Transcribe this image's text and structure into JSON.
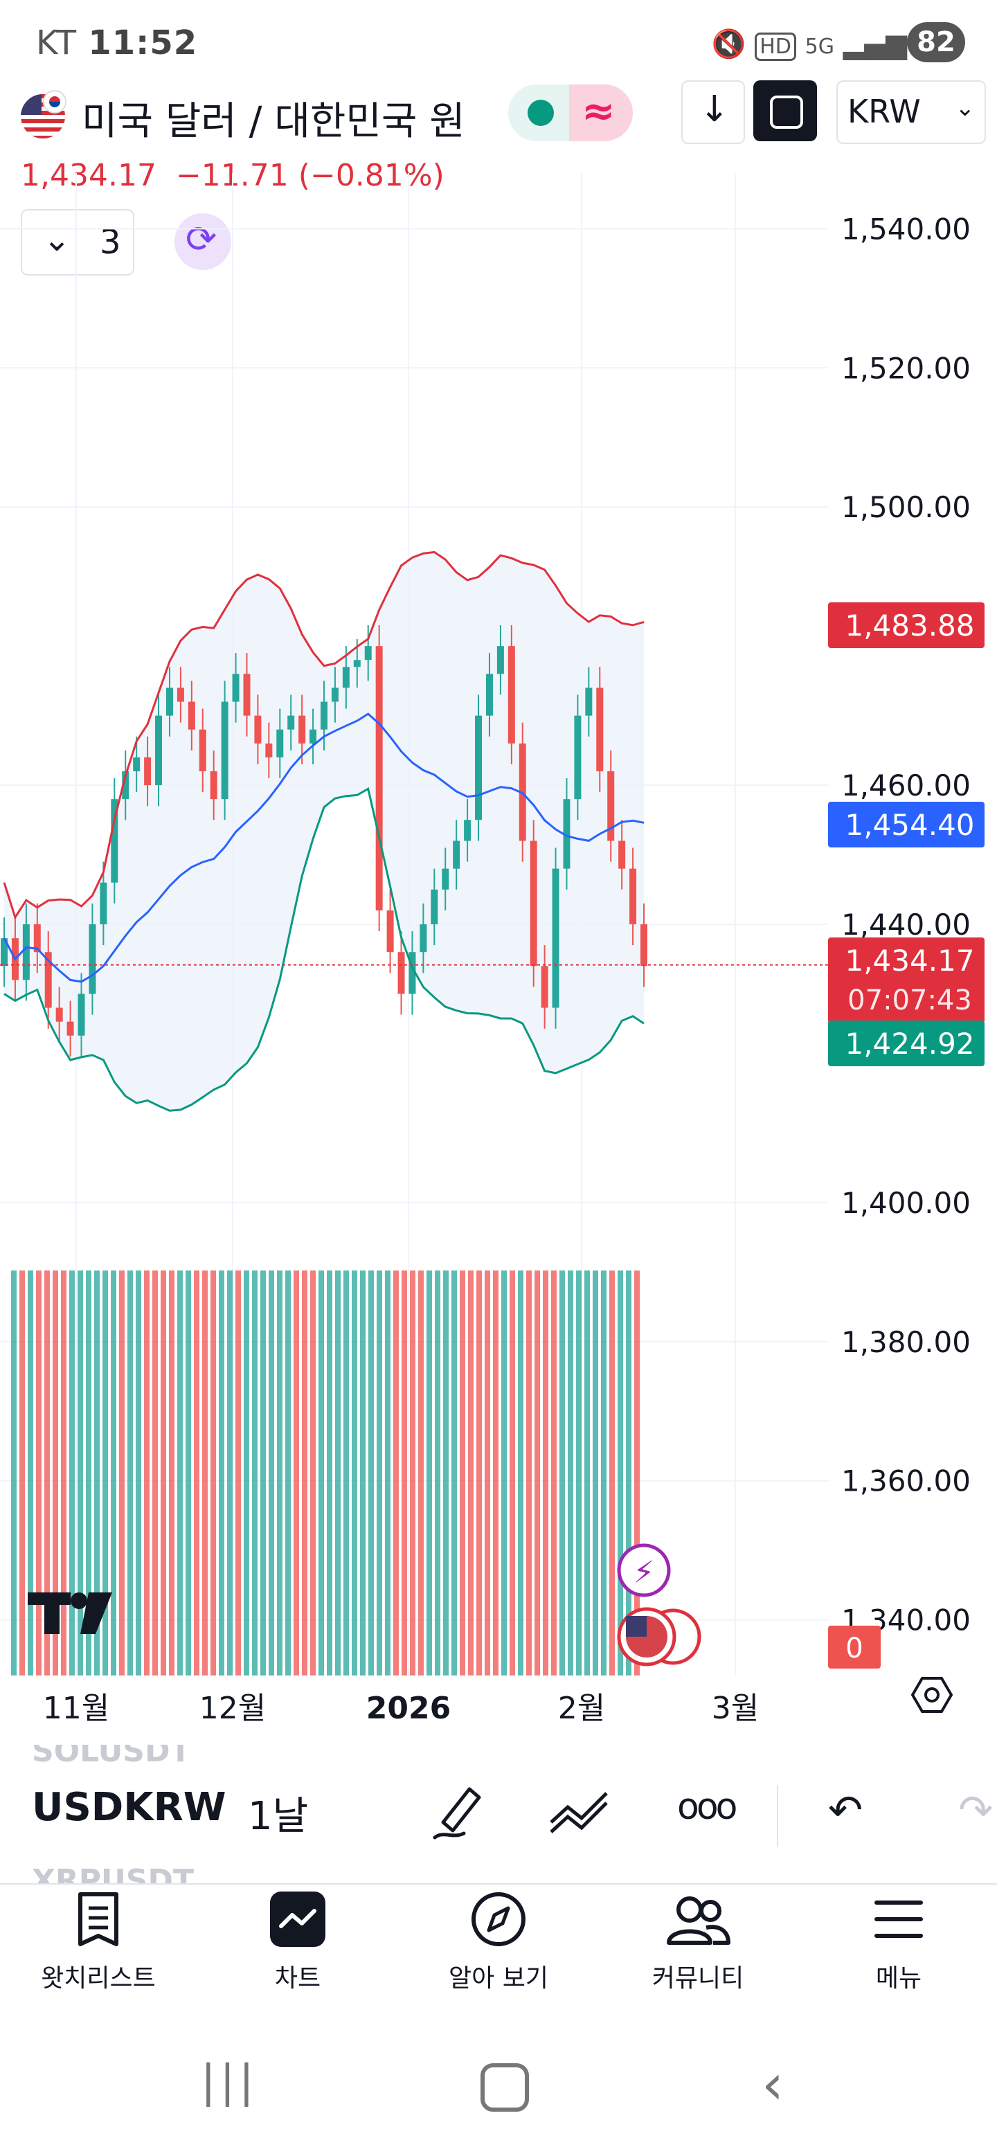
{
  "status_bar": {
    "carrier": "KT",
    "time": "11:52",
    "battery": "82"
  },
  "header": {
    "title": "미국 달러 / 대한민국 원",
    "price": "1,434.17",
    "change": "−11.71",
    "change_pct": "(−0.81%)",
    "currency_select": "KRW",
    "indicator_count": "3"
  },
  "chart_data": {
    "type": "candlestick",
    "symbol": "USDKRW",
    "interval": "1날",
    "y_tick_labels": [
      "1,540.00",
      "1,520.00",
      "1,500.00",
      "1,460.00",
      "1,440.00",
      "1,400.00",
      "1,380.00",
      "1,360.00",
      "1,340.00"
    ],
    "ylim": [
      1332,
      1548
    ],
    "x_tick_labels": [
      "11월",
      "12월",
      "2026",
      "2월",
      "3월"
    ],
    "price_tags": {
      "bb_upper": "1,483.88",
      "bb_middle": "1,454.40",
      "last_price": "1,434.17",
      "countdown": "07:07:43",
      "bb_lower": "1,424.92",
      "volume": "0"
    },
    "closes": [
      1438,
      1432,
      1440,
      1436,
      1428,
      1426,
      1424,
      1430,
      1440,
      1446,
      1458,
      1462,
      1464,
      1460,
      1470,
      1474,
      1472,
      1468,
      1462,
      1458,
      1472,
      1476,
      1470,
      1466,
      1464,
      1468,
      1470,
      1466,
      1468,
      1472,
      1474,
      1477,
      1478,
      1480,
      1442,
      1436,
      1430,
      1436,
      1440,
      1445,
      1448,
      1452,
      1455,
      1470,
      1476,
      1480,
      1466,
      1452,
      1434,
      1428,
      1448,
      1458,
      1470,
      1474,
      1462,
      1452,
      1448,
      1440,
      1434
    ]
  },
  "toolbar": {
    "symbols_above": "SOLUSDT",
    "symbol": "USDKRW",
    "symbols_below": "XRPUSDT",
    "interval": "1날"
  },
  "bottom_nav": [
    {
      "label": "왓치리스트",
      "icon": "watchlist-icon"
    },
    {
      "label": "차트",
      "icon": "chart-icon"
    },
    {
      "label": "알아 보기",
      "icon": "compass-icon"
    },
    {
      "label": "커뮤니티",
      "icon": "community-icon"
    },
    {
      "label": "메뉴",
      "icon": "menu-icon"
    }
  ],
  "colors": {
    "up": "#26a69a",
    "down": "#ef5350",
    "bb_upper": "#e0303d",
    "bb_middle": "#2962ff",
    "bb_lower": "#089981"
  }
}
